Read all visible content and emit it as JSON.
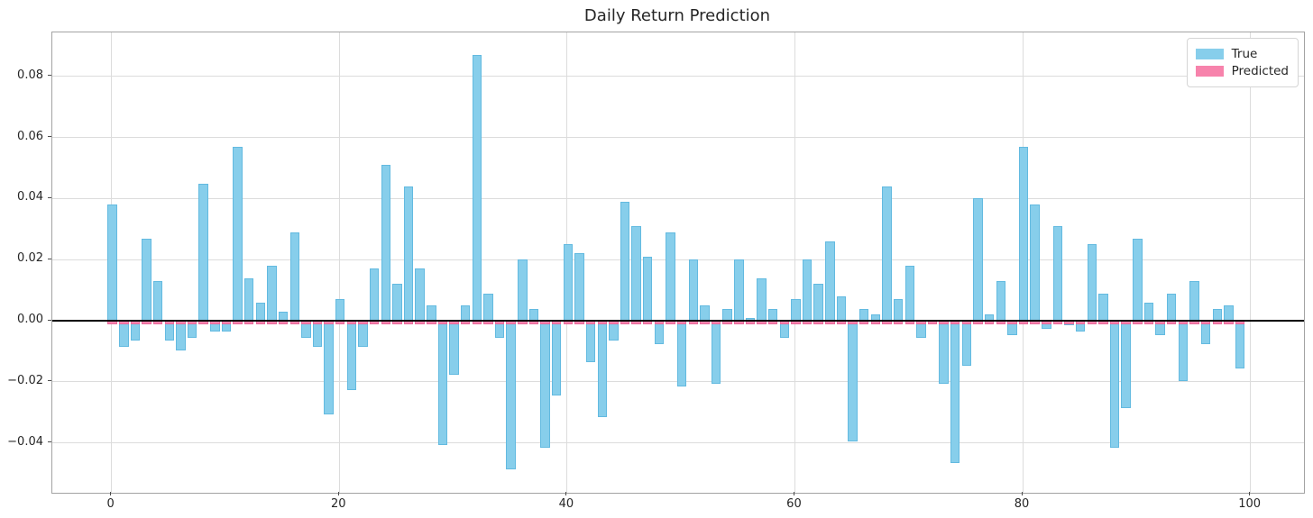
{
  "title": "Daily Return Prediction",
  "legend": {
    "items": [
      {
        "label": "True",
        "color": "#87ceeb"
      },
      {
        "label": "Predicted",
        "color": "#f783ac"
      }
    ]
  },
  "colors": {
    "true_bar": "#87ceeb",
    "predicted_bar": "#f783ac",
    "gridline": "#dcdcdc",
    "zero_line": "#000000",
    "background": "#ffffff"
  },
  "chart_data": {
    "type": "bar",
    "title": "Daily Return Prediction",
    "xlabel": "",
    "ylabel": "",
    "grid": true,
    "legend_position": "upper right",
    "x_tick_labels": [
      "0",
      "20",
      "40",
      "60",
      "80",
      "100"
    ],
    "x_tick_values": [
      0,
      20,
      40,
      60,
      80,
      100
    ],
    "y_tick_labels": [
      "0.08",
      "0.06",
      "0.04",
      "0.02",
      "0.00",
      "−0.02",
      "−0.04"
    ],
    "y_tick_values": [
      0.08,
      0.06,
      0.04,
      0.02,
      0.0,
      -0.02,
      -0.04
    ],
    "x_range": [
      -5.2,
      104.7
    ],
    "y_range": [
      -0.0563,
      0.0944
    ],
    "x_is_bar_index_0_to_99": true,
    "bar_width_units": 0.67,
    "series": [
      {
        "name": "True",
        "color": "#87ceeb",
        "values": [
          0.038,
          -0.008,
          -0.006,
          0.027,
          0.013,
          -0.006,
          -0.009,
          -0.005,
          0.045,
          -0.003,
          -0.003,
          0.057,
          0.014,
          0.006,
          0.018,
          0.003,
          0.029,
          -0.005,
          -0.008,
          -0.03,
          0.007,
          -0.022,
          -0.008,
          0.017,
          0.051,
          0.012,
          0.044,
          0.017,
          0.005,
          -0.04,
          -0.017,
          0.005,
          0.087,
          0.009,
          -0.005,
          -0.048,
          0.02,
          0.004,
          -0.041,
          -0.024,
          0.025,
          0.022,
          -0.013,
          -0.031,
          -0.006,
          0.039,
          0.031,
          0.021,
          -0.007,
          0.029,
          -0.021,
          0.02,
          0.005,
          -0.02,
          0.004,
          0.02,
          0.001,
          0.014,
          0.004,
          -0.005,
          0.007,
          0.02,
          0.012,
          0.026,
          0.008,
          -0.039,
          0.004,
          0.002,
          0.044,
          0.007,
          0.018,
          -0.005,
          0.0,
          -0.02,
          -0.046,
          -0.014,
          0.04,
          0.002,
          0.013,
          -0.004,
          0.057,
          0.038,
          -0.002,
          0.031,
          -0.001,
          -0.003,
          0.025,
          0.009,
          -0.041,
          -0.028,
          0.027,
          0.006,
          -0.004,
          0.009,
          -0.019,
          0.013,
          -0.007,
          0.004,
          0.005,
          -0.015
        ]
      },
      {
        "name": "Predicted",
        "color": "#f783ac",
        "all_values_approximately_zero": true,
        "approx_value": -0.0005
      }
    ]
  }
}
